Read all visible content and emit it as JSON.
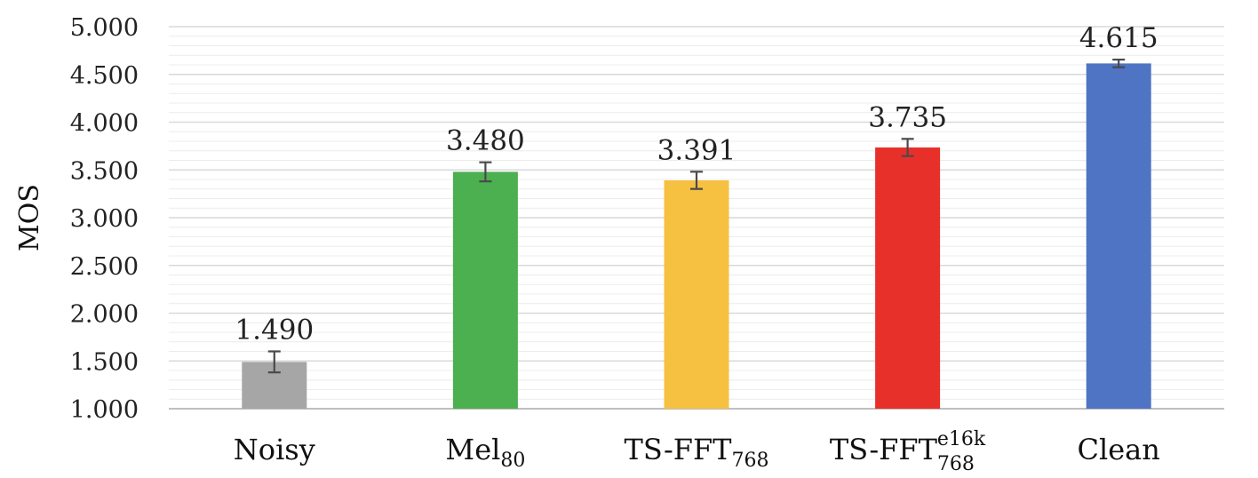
{
  "chart_data": {
    "type": "bar",
    "title": "",
    "xlabel": "",
    "ylabel": "MOS",
    "ylim": [
      1.0,
      5.0
    ],
    "yticks": [
      "1.000",
      "1.500",
      "2.000",
      "2.500",
      "3.000",
      "3.500",
      "4.000",
      "4.500",
      "5.000"
    ],
    "grid": true,
    "legend": "none",
    "categories": [
      {
        "base": "Noisy",
        "sub": "",
        "sup": ""
      },
      {
        "base": "Mel",
        "sub": "80",
        "sup": ""
      },
      {
        "base": "TS-FFT",
        "sub": "768",
        "sup": ""
      },
      {
        "base": "TS-FFT",
        "sub": "768",
        "sup": "e16k"
      },
      {
        "base": "Clean",
        "sub": "",
        "sup": ""
      }
    ],
    "values": [
      1.49,
      3.48,
      3.391,
      3.735,
      4.615
    ],
    "value_labels": [
      "1.490",
      "3.480",
      "3.391",
      "3.735",
      "4.615"
    ],
    "error": [
      0.11,
      0.1,
      0.09,
      0.09,
      0.04
    ],
    "colors": [
      "#a6a6a6",
      "#4caf50",
      "#f6c040",
      "#e8302a",
      "#4f74c4"
    ]
  }
}
